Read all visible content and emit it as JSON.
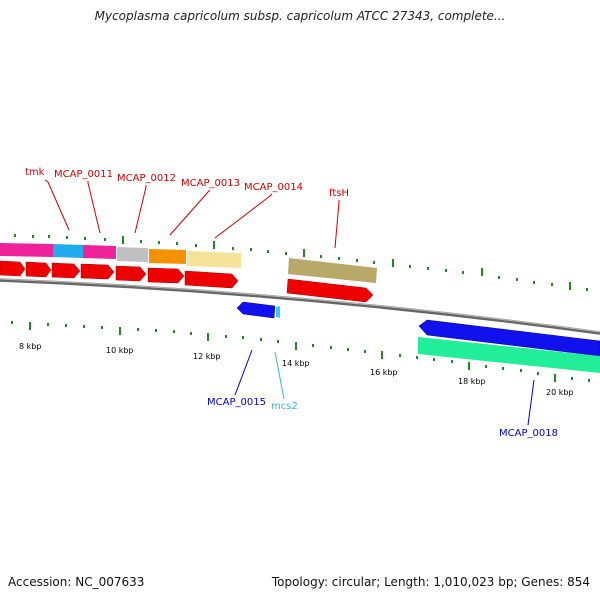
{
  "header": {
    "title": "Mycoplasma capricolum subsp. capricolum ATCC 27343, complete..."
  },
  "footer": {
    "accession": "Accession: NC_007633",
    "summary": "Topology: circular; Length: 1,010,023 bp; Genes: 854"
  },
  "colors": {
    "forward_label": "#cc0000",
    "reverse_label": "#0000cc",
    "rna_label": "#33bbcc",
    "cds_arrow": "#ee0000",
    "reverse_arrow": "#1111ee",
    "backbone": "#888888",
    "tick": "#228822"
  },
  "ruler_labels": [
    "8 kbp",
    "10 kbp",
    "12 kbp",
    "14 kbp",
    "16 kbp",
    "18 kbp",
    "20 kbp"
  ],
  "gene_labels": [
    {
      "text": "tmk",
      "strand": "forward"
    },
    {
      "text": "MCAP_0011",
      "strand": "forward"
    },
    {
      "text": "MCAP_0012",
      "strand": "forward"
    },
    {
      "text": "MCAP_0013",
      "strand": "forward"
    },
    {
      "text": "MCAP_0014",
      "strand": "forward"
    },
    {
      "text": "ftsH",
      "strand": "forward"
    },
    {
      "text": "MCAP_0015",
      "strand": "reverse"
    },
    {
      "text": "mcs2",
      "strand": "rna"
    },
    {
      "text": "MCAP_0018",
      "strand": "reverse"
    }
  ]
}
